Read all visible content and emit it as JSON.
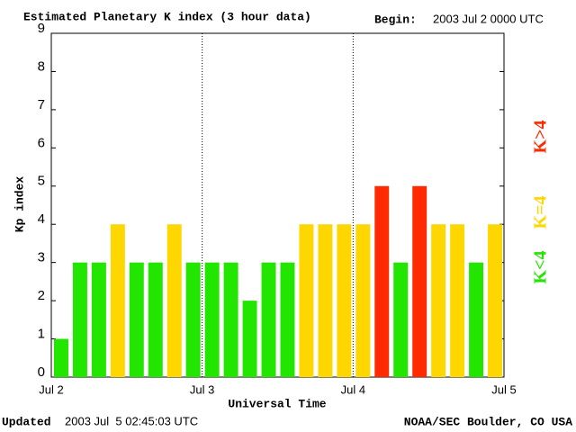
{
  "chart_data": {
    "type": "bar",
    "title": "Estimated Planetary K index (3 hour data)",
    "begin_label": "Begin:",
    "begin": "2003 Jul 2 0000 UTC",
    "xlabel": "Universal Time",
    "ylabel": "Kp index",
    "updated_label": "Updated",
    "updated": "2003 Jul  5 02:45:03 UTC",
    "source": "NOAA/SEC Boulder, CO USA",
    "values": [
      1,
      3,
      3,
      4,
      3,
      3,
      4,
      3,
      3,
      3,
      2,
      3,
      3,
      4,
      4,
      4,
      4,
      5,
      3,
      5,
      4,
      4,
      3,
      4
    ],
    "colors": [
      "#22e600",
      "#22e600",
      "#22e600",
      "#ffd700",
      "#22e600",
      "#22e600",
      "#ffd700",
      "#22e600",
      "#22e600",
      "#22e600",
      "#22e600",
      "#22e600",
      "#22e600",
      "#ffd700",
      "#ffd700",
      "#ffd700",
      "#ffd700",
      "#ff2a00",
      "#22e600",
      "#ff2a00",
      "#ffd700",
      "#ffd700",
      "#22e600",
      "#ffd700"
    ],
    "day_labels": [
      "Jul 2",
      "Jul 3",
      "Jul 4",
      "Jul 5"
    ],
    "ylim": [
      0,
      9
    ],
    "yticks": [
      0,
      1,
      2,
      3,
      4,
      5,
      6,
      7,
      8,
      9
    ],
    "legend": [
      {
        "name": "K<4",
        "color": "#22e600"
      },
      {
        "name": "K=4",
        "color": "#ffd700"
      },
      {
        "name": "K>4",
        "color": "#ff2a00"
      }
    ]
  }
}
